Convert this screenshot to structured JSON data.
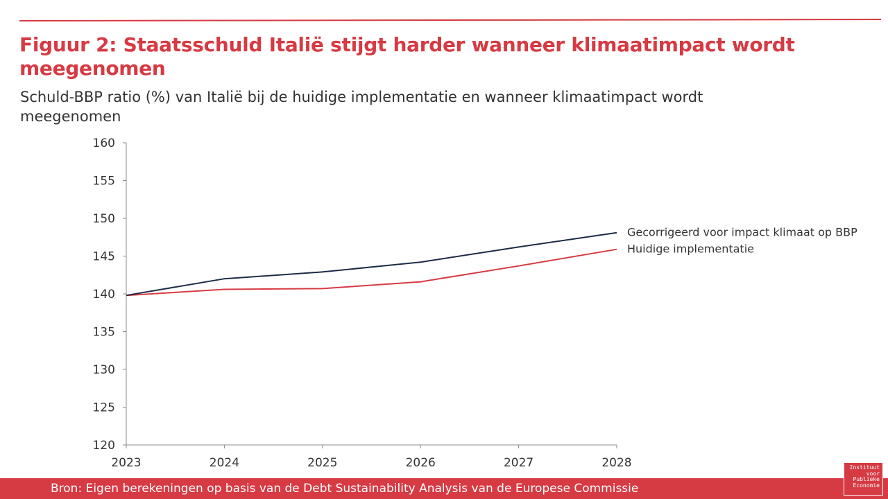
{
  "header": {
    "title": "Figuur 2: Staatsschuld Italië stijgt harder wanneer klimaatimpact wordt meegenomen",
    "subtitle": "Schuld-BBP ratio (%) van Italië bij de huidige implementatie en wanneer klimaatimpact wordt meegenomen"
  },
  "footer": {
    "source": "Bron: Eigen berekeningen op basis van de Debt Sustainability Analysis van de Europese Commissie"
  },
  "logo": {
    "line1": "Instituut",
    "line2": "voor",
    "line3": "Publieke",
    "line4": "Economie"
  },
  "colors": {
    "accent": "#d63a43",
    "series_dark": "#1d2b46",
    "series_red": "#d63a43"
  },
  "chart_data": {
    "type": "line",
    "title": "",
    "xlabel": "",
    "ylabel": "",
    "x": [
      "2023",
      "2024",
      "2025",
      "2026",
      "2027",
      "2028"
    ],
    "ylim": [
      120,
      160
    ],
    "yticks": [
      120,
      125,
      130,
      135,
      140,
      145,
      150,
      155,
      160
    ],
    "grid": false,
    "legend": "direct labels at line ends (right)",
    "series": [
      {
        "name": "Gecorrigeerd voor impact klimaat op BBP",
        "color": "#1d2b46",
        "values": [
          139.8,
          142.0,
          142.9,
          144.2,
          146.2,
          148.1
        ]
      },
      {
        "name": "Huidige implementatie",
        "color": "#d63a43",
        "values": [
          139.8,
          140.6,
          140.7,
          141.6,
          143.7,
          145.9
        ]
      }
    ]
  }
}
